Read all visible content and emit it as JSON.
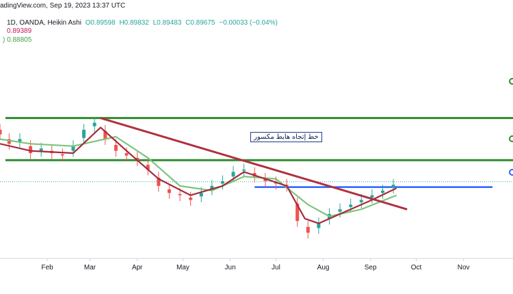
{
  "header": {
    "line1": {
      "source": "adingView.com, Sep 19, 2023 13:37 UTC",
      "symbol": "1D, OANDA, Heikin Ashi",
      "open": "O0.89598",
      "high": "H0.89832",
      "low": "L0.89483",
      "close": "C0.89675",
      "change": "−0.00033 (−0.04%)"
    },
    "ma_red": "0.89389",
    "ma_green": ") 0.88805"
  },
  "annotation": "خط إتجاه هابط مكسور",
  "colors": {
    "up": "#26a69a",
    "down": "#ef5350",
    "ma_red": "#a52a3a",
    "ma_green": "#7cc47c",
    "level": "#2e8b2e",
    "support": "#2962ff",
    "trendline": "#b03040"
  },
  "chart_data": {
    "type": "candlestick",
    "x_axis": {
      "ticks": [
        "Feb",
        "Mar",
        "Apr",
        "May",
        "Jun",
        "Jul",
        "Aug",
        "Sep",
        "Oct",
        "Nov"
      ],
      "range": [
        "2023-01-01",
        "2023-11-20"
      ]
    },
    "y_axis": {
      "range": [
        0.855,
        0.945
      ],
      "labels_visible": false
    },
    "candles": [
      {
        "date": "2023-01-01",
        "close": 0.908
      },
      {
        "date": "2023-01-07",
        "close": 0.904
      },
      {
        "date": "2023-01-14",
        "close": 0.906
      },
      {
        "date": "2023-01-21",
        "close": 0.9
      },
      {
        "date": "2023-01-28",
        "close": 0.902
      },
      {
        "date": "2023-02-04",
        "close": 0.9
      },
      {
        "date": "2023-02-11",
        "close": 0.899
      },
      {
        "date": "2023-02-18",
        "close": 0.903
      },
      {
        "date": "2023-02-25",
        "close": 0.91
      },
      {
        "date": "2023-03-04",
        "close": 0.913
      },
      {
        "date": "2023-03-11",
        "close": 0.906
      },
      {
        "date": "2023-03-18",
        "close": 0.901
      },
      {
        "date": "2023-03-25",
        "close": 0.899
      },
      {
        "date": "2023-04-01",
        "close": 0.897
      },
      {
        "date": "2023-04-08",
        "close": 0.893
      },
      {
        "date": "2023-04-15",
        "close": 0.886
      },
      {
        "date": "2023-04-22",
        "close": 0.883
      },
      {
        "date": "2023-04-29",
        "close": 0.882
      },
      {
        "date": "2023-05-06",
        "close": 0.88
      },
      {
        "date": "2023-05-13",
        "close": 0.883
      },
      {
        "date": "2023-05-20",
        "close": 0.886
      },
      {
        "date": "2023-05-27",
        "close": 0.888
      },
      {
        "date": "2023-06-03",
        "close": 0.892
      },
      {
        "date": "2023-06-10",
        "close": 0.893
      },
      {
        "date": "2023-06-17",
        "close": 0.89
      },
      {
        "date": "2023-06-24",
        "close": 0.888
      },
      {
        "date": "2023-07-01",
        "close": 0.887
      },
      {
        "date": "2023-07-08",
        "close": 0.886
      },
      {
        "date": "2023-07-15",
        "close": 0.871
      },
      {
        "date": "2023-07-22",
        "close": 0.866
      },
      {
        "date": "2023-07-29",
        "close": 0.87
      },
      {
        "date": "2023-08-05",
        "close": 0.874
      },
      {
        "date": "2023-08-12",
        "close": 0.876
      },
      {
        "date": "2023-08-19",
        "close": 0.878
      },
      {
        "date": "2023-08-26",
        "close": 0.88
      },
      {
        "date": "2023-09-02",
        "close": 0.882
      },
      {
        "date": "2023-09-09",
        "close": 0.884
      },
      {
        "date": "2023-09-16",
        "close": 0.8865
      }
    ],
    "ma_red": [
      {
        "date": "2023-01-01",
        "value": 0.904
      },
      {
        "date": "2023-01-21",
        "value": 0.901
      },
      {
        "date": "2023-02-18",
        "value": 0.9
      },
      {
        "date": "2023-03-08",
        "value": 0.911
      },
      {
        "date": "2023-03-25",
        "value": 0.901
      },
      {
        "date": "2023-04-15",
        "value": 0.889
      },
      {
        "date": "2023-05-06",
        "value": 0.882
      },
      {
        "date": "2023-05-27",
        "value": 0.886
      },
      {
        "date": "2023-06-10",
        "value": 0.892
      },
      {
        "date": "2023-06-24",
        "value": 0.889
      },
      {
        "date": "2023-07-08",
        "value": 0.886
      },
      {
        "date": "2023-07-20",
        "value": 0.872
      },
      {
        "date": "2023-07-29",
        "value": 0.87
      },
      {
        "date": "2023-08-19",
        "value": 0.876
      },
      {
        "date": "2023-09-02",
        "value": 0.88
      },
      {
        "date": "2023-09-18",
        "value": 0.885
      }
    ],
    "ma_green": [
      {
        "date": "2023-01-01",
        "value": 0.906
      },
      {
        "date": "2023-01-21",
        "value": 0.904
      },
      {
        "date": "2023-02-18",
        "value": 0.903
      },
      {
        "date": "2023-03-18",
        "value": 0.907
      },
      {
        "date": "2023-04-08",
        "value": 0.898
      },
      {
        "date": "2023-04-29",
        "value": 0.886
      },
      {
        "date": "2023-05-20",
        "value": 0.884
      },
      {
        "date": "2023-06-10",
        "value": 0.89
      },
      {
        "date": "2023-07-01",
        "value": 0.889
      },
      {
        "date": "2023-07-22",
        "value": 0.878
      },
      {
        "date": "2023-08-05",
        "value": 0.873
      },
      {
        "date": "2023-08-26",
        "value": 0.876
      },
      {
        "date": "2023-09-18",
        "value": 0.882
      }
    ],
    "horizontal_levels": [
      {
        "value": 0.915,
        "color": "#2e8b2e"
      },
      {
        "value": 0.897,
        "color": "#2e8b2e"
      }
    ],
    "support_segment": {
      "from": "2023-06-17",
      "to": "2023-11-20",
      "value": 0.8855,
      "color": "#2962ff"
    },
    "trendline": {
      "from": {
        "date": "2023-03-08",
        "value": 0.915
      },
      "to": {
        "date": "2023-09-25",
        "value": 0.876
      }
    },
    "last_price_dotted": 0.8878
  }
}
